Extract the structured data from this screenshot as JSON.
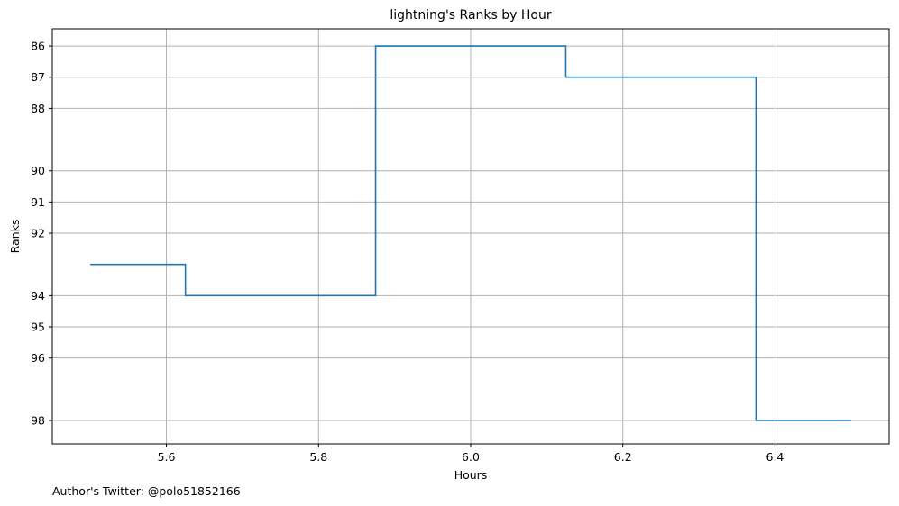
{
  "chart_data": {
    "type": "line",
    "step": "post",
    "title": "lightning's Ranks by Hour",
    "xlabel": "Hours",
    "ylabel": "Ranks",
    "xlim": [
      5.45,
      6.55
    ],
    "ylim": [
      98.75,
      85.45
    ],
    "y_inverted": true,
    "grid": true,
    "x_ticks": [
      5.6,
      5.8,
      6.0,
      6.2,
      6.4
    ],
    "x_tick_labels": [
      "5.6",
      "5.8",
      "6.0",
      "6.2",
      "6.4"
    ],
    "y_ticks": [
      86,
      87,
      88,
      90,
      91,
      92,
      94,
      95,
      96,
      98
    ],
    "y_tick_labels": [
      "86",
      "87",
      "88",
      "90",
      "91",
      "92",
      "94",
      "95",
      "96",
      "98"
    ],
    "series": [
      {
        "color": "#1f77b4",
        "x": [
          5.5,
          5.625,
          5.875,
          6.125,
          6.375,
          6.5
        ],
        "y": [
          93,
          94,
          86,
          87,
          98,
          98
        ]
      }
    ]
  },
  "footer": {
    "note": "Author's Twitter: @polo51852166"
  }
}
